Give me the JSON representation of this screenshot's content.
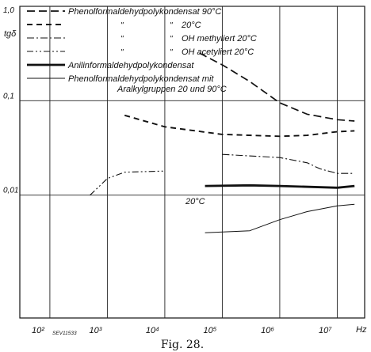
{
  "chart_data": {
    "type": "line",
    "title": "",
    "xlabel": "Hz",
    "ylabel": "tgδ",
    "x_scale": "log",
    "y_scale": "log",
    "xlim": [
      30,
      30000000
    ],
    "ylim": [
      0.0005,
      1.0
    ],
    "grid": true,
    "legend_position": "top",
    "y_ticks": [
      {
        "value": 1.0,
        "label": "1,0"
      },
      {
        "value": 0.1,
        "label": "0,1"
      },
      {
        "value": 0.01,
        "label": "0,01"
      }
    ],
    "x_ticks": [
      {
        "value": 100,
        "label": "10²"
      },
      {
        "value": 1000,
        "label": "10³"
      },
      {
        "value": 10000,
        "label": "10⁴"
      },
      {
        "value": 100000,
        "label": "10⁵"
      },
      {
        "value": 1000000,
        "label": "10⁶"
      },
      {
        "value": 10000000,
        "label": "10⁷"
      }
    ],
    "series": [
      {
        "name": "Phenolformaldehydpolykondensat 90°C",
        "style": "long-dash",
        "points": [
          [
            40000,
            0.32
          ],
          [
            100000,
            0.24
          ],
          [
            300000,
            0.16
          ],
          [
            1000000,
            0.095
          ],
          [
            3000000,
            0.072
          ],
          [
            10000000,
            0.063
          ],
          [
            20000000,
            0.061
          ]
        ]
      },
      {
        "name": "20°C",
        "style": "dash",
        "points": [
          [
            2000,
            0.07
          ],
          [
            10000,
            0.053
          ],
          [
            100000,
            0.044
          ],
          [
            1000000,
            0.042
          ],
          [
            3000000,
            0.043
          ],
          [
            10000000,
            0.047
          ],
          [
            20000000,
            0.048
          ]
        ]
      },
      {
        "name": "OH methyliert 20°C",
        "style": "dash-dot",
        "points": [
          [
            100000,
            0.027
          ],
          [
            1000000,
            0.025
          ],
          [
            3000000,
            0.022
          ],
          [
            5000000,
            0.019
          ],
          [
            10000000,
            0.017
          ],
          [
            20000000,
            0.017
          ]
        ]
      },
      {
        "name": "OH acetyliert 20°C",
        "style": "dash-dot-dot",
        "points": [
          [
            500,
            0.01
          ],
          [
            1000,
            0.015
          ],
          [
            2000,
            0.0175
          ],
          [
            10000,
            0.018
          ]
        ]
      },
      {
        "name": "Anilinformaldehydpolykondensat",
        "style": "thick",
        "points": [
          [
            50000,
            0.0125
          ],
          [
            300000,
            0.0127
          ],
          [
            1000000,
            0.0125
          ],
          [
            10000000,
            0.012
          ],
          [
            20000000,
            0.0125
          ]
        ]
      },
      {
        "name": "Phenolformaldehydpolykondensat mit Aralkylgruppen 20 und 90°C",
        "style": "thin",
        "points": [
          [
            50000,
            0.004
          ],
          [
            300000,
            0.0042
          ],
          [
            1000000,
            0.0055
          ],
          [
            3000000,
            0.0067
          ],
          [
            10000000,
            0.0077
          ],
          [
            20000000,
            0.008
          ]
        ]
      }
    ],
    "legend": [
      {
        "text": "Phenolformaldehydpolykondensat 90°C",
        "style": "long-dash"
      },
      {
        "text": "20°C",
        "style": "dash",
        "ditto": [
          "\"",
          "\""
        ]
      },
      {
        "text": "OH methyliert 20°C",
        "style": "dash-dot",
        "ditto": [
          "\"",
          "\""
        ]
      },
      {
        "text": "OH acetyliert 20°C",
        "style": "dash-dot-dot",
        "ditto": [
          "\"",
          "\""
        ]
      },
      {
        "text": "Anilinformaldehydpolykondensat",
        "style": "thick"
      },
      {
        "text": "Phenolformaldehydpolykondensat mit",
        "text2": "Aralkylgruppen 20 und 90°C",
        "style": "thin"
      }
    ],
    "annotations": [
      {
        "text": "20°C",
        "x": 60000,
        "y": 0.013
      }
    ],
    "code": "SEV11533",
    "caption": "Fig. 28."
  }
}
